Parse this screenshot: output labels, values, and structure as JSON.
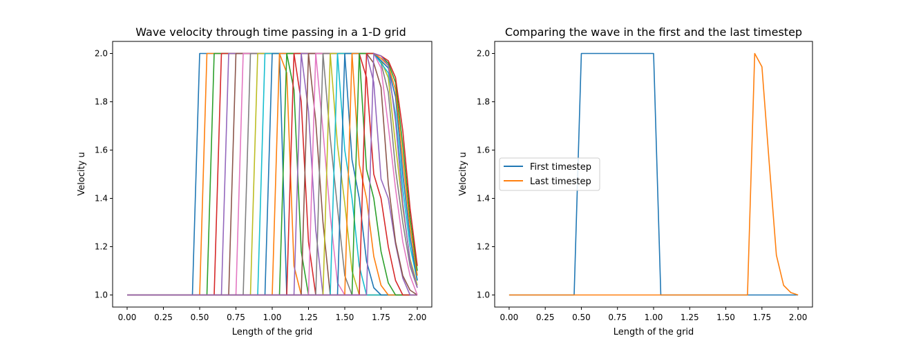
{
  "chart_data": [
    {
      "type": "line",
      "title": "Wave velocity through time passing in a 1-D grid",
      "xlabel": "Length of the grid",
      "ylabel": "Velocity u",
      "xlim": [
        -0.1,
        2.1
      ],
      "ylim": [
        0.95,
        2.05
      ],
      "xticks": [
        "0.00",
        "0.25",
        "0.50",
        "0.75",
        "1.00",
        "1.25",
        "1.50",
        "1.75",
        "2.00"
      ],
      "yticks": [
        "1.0",
        "1.2",
        "1.4",
        "1.6",
        "1.8",
        "2.0"
      ],
      "grid": false,
      "legend": "none",
      "x": [
        0.0,
        0.05,
        0.1,
        0.15,
        0.2,
        0.25,
        0.3,
        0.35,
        0.4,
        0.45,
        0.5,
        0.55,
        0.6,
        0.65,
        0.7,
        0.75,
        0.8,
        0.85,
        0.9,
        0.95,
        1.0,
        1.05,
        1.1,
        1.15,
        1.2,
        1.25,
        1.3,
        1.35,
        1.4,
        1.45,
        1.5,
        1.55,
        1.6,
        1.65,
        1.7,
        1.75,
        1.8,
        1.85,
        1.9,
        1.95,
        2.0
      ],
      "series": [
        {
          "color": "#1f77b4",
          "start": 0.5,
          "end": 1.0,
          "tail": [
            1.0
          ]
        },
        {
          "color": "#ff7f0e",
          "start": 0.55,
          "end": 1.05,
          "tail": [
            0.92,
            0.12
          ]
        },
        {
          "color": "#2ca02c",
          "start": 0.6,
          "end": 1.1,
          "tail": [
            0.85,
            0.18
          ]
        },
        {
          "color": "#d62728",
          "start": 0.65,
          "end": 1.15,
          "tail": [
            0.8,
            0.22
          ]
        },
        {
          "color": "#9467bd",
          "start": 0.7,
          "end": 1.2,
          "tail": [
            0.76,
            0.27
          ]
        },
        {
          "color": "#8c564b",
          "start": 0.75,
          "end": 1.25,
          "tail": [
            0.72,
            0.3
          ]
        },
        {
          "color": "#e377c2",
          "start": 0.8,
          "end": 1.3,
          "tail": [
            0.68,
            0.33,
            0.05
          ]
        },
        {
          "color": "#7f7f7f",
          "start": 0.85,
          "end": 1.35,
          "tail": [
            0.65,
            0.36,
            0.08
          ]
        },
        {
          "color": "#bcbd22",
          "start": 0.9,
          "end": 1.4,
          "tail": [
            0.62,
            0.38,
            0.1
          ]
        },
        {
          "color": "#17becf",
          "start": 0.95,
          "end": 1.45,
          "tail": [
            0.6,
            0.4,
            0.12
          ]
        },
        {
          "color": "#1f77b4",
          "start": 1.0,
          "end": 1.5,
          "tail": [
            0.56,
            0.4,
            0.14,
            0.03
          ]
        },
        {
          "color": "#ff7f0e",
          "start": 1.05,
          "end": 1.55,
          "tail": [
            0.54,
            0.4,
            0.16,
            0.04
          ]
        },
        {
          "color": "#2ca02c",
          "start": 1.1,
          "end": 1.6,
          "tail": [
            0.52,
            0.4,
            0.18,
            0.05
          ]
        },
        {
          "color": "#d62728",
          "start": 1.15,
          "end": 1.6,
          "tail": [
            0.9,
            0.5,
            0.4,
            0.2,
            0.06
          ]
        },
        {
          "color": "#9467bd",
          "start": 1.2,
          "end": 1.65,
          "tail": [
            0.88,
            0.48,
            0.4,
            0.21,
            0.07
          ]
        },
        {
          "color": "#8c564b",
          "start": 1.25,
          "end": 1.65,
          "tail": [
            0.96,
            0.86,
            0.46,
            0.22,
            0.08,
            0.02
          ]
        },
        {
          "color": "#e377c2",
          "start": 1.3,
          "end": 1.7,
          "tail": [
            0.94,
            0.7,
            0.44,
            0.22,
            0.08
          ]
        },
        {
          "color": "#7f7f7f",
          "start": 1.35,
          "end": 1.7,
          "tail": [
            0.96,
            0.84,
            0.52,
            0.3,
            0.12,
            0.03
          ]
        },
        {
          "color": "#bcbd22",
          "start": 1.4,
          "end": 1.7,
          "tail": [
            0.97,
            0.9,
            0.62,
            0.36,
            0.15,
            0.04
          ]
        },
        {
          "color": "#17becf",
          "start": 1.45,
          "end": 1.7,
          "tail": [
            0.96,
            0.92,
            0.75,
            0.44,
            0.2,
            0.06
          ]
        },
        {
          "color": "#1f77b4",
          "start": 1.5,
          "end": 1.7,
          "tail": [
            0.97,
            0.94,
            0.82,
            0.5,
            0.24,
            0.06
          ]
        },
        {
          "color": "#ff7f0e",
          "start": 1.55,
          "end": 1.7,
          "tail": [
            0.98,
            0.95,
            0.85,
            0.56,
            0.28,
            0.08
          ]
        },
        {
          "color": "#2ca02c",
          "start": 1.6,
          "end": 1.7,
          "tail": [
            0.99,
            0.96,
            0.88,
            0.62,
            0.32,
            0.1
          ]
        },
        {
          "color": "#d62728",
          "start": 1.65,
          "end": 1.7,
          "tail": [
            0.99,
            0.97,
            0.9,
            0.68,
            0.36,
            0.12
          ]
        },
        {
          "color": "#9467bd",
          "start": 1.7,
          "end": 1.7,
          "tail": [
            0.99,
            0.95,
            0.72,
            0.38,
            0.14,
            0.03
          ]
        }
      ]
    },
    {
      "type": "line",
      "title": "Comparing the wave in the first and the last timestep",
      "xlabel": "Length of the grid",
      "ylabel": "Velocity u",
      "xlim": [
        -0.1,
        2.1
      ],
      "ylim": [
        0.95,
        2.05
      ],
      "xticks": [
        "0.00",
        "0.25",
        "0.50",
        "0.75",
        "1.00",
        "1.25",
        "1.50",
        "1.75",
        "2.00"
      ],
      "yticks": [
        "1.0",
        "1.2",
        "1.4",
        "1.6",
        "1.8",
        "2.0"
      ],
      "grid": false,
      "legend": "center-left",
      "x": [
        0.0,
        0.05,
        0.1,
        0.15,
        0.2,
        0.25,
        0.3,
        0.35,
        0.4,
        0.45,
        0.5,
        0.55,
        0.6,
        0.65,
        0.7,
        0.75,
        0.8,
        0.85,
        0.9,
        0.95,
        1.0,
        1.05,
        1.1,
        1.15,
        1.2,
        1.25,
        1.3,
        1.35,
        1.4,
        1.45,
        1.5,
        1.55,
        1.6,
        1.65,
        1.7,
        1.75,
        1.8,
        1.85,
        1.9,
        1.95,
        2.0
      ],
      "series": [
        {
          "name": "First timestep",
          "color": "#1f77b4",
          "y": [
            1,
            1,
            1,
            1,
            1,
            1,
            1,
            1,
            1,
            1,
            2,
            2,
            2,
            2,
            2,
            2,
            2,
            2,
            2,
            2,
            2,
            1,
            1,
            1,
            1,
            1,
            1,
            1,
            1,
            1,
            1,
            1,
            1,
            1,
            1,
            1,
            1,
            1,
            1,
            1,
            1
          ]
        },
        {
          "name": "Last timestep",
          "color": "#ff7f0e",
          "y": [
            1,
            1,
            1,
            1,
            1,
            1,
            1,
            1,
            1,
            1,
            1,
            1,
            1,
            1,
            1,
            1,
            1,
            1,
            1,
            1,
            1,
            1,
            1,
            1,
            1,
            1,
            1,
            1,
            1,
            1,
            1,
            1,
            1,
            1,
            2,
            1.945,
            1.55,
            1.165,
            1.04,
            1.01,
            1.0
          ]
        }
      ]
    }
  ]
}
